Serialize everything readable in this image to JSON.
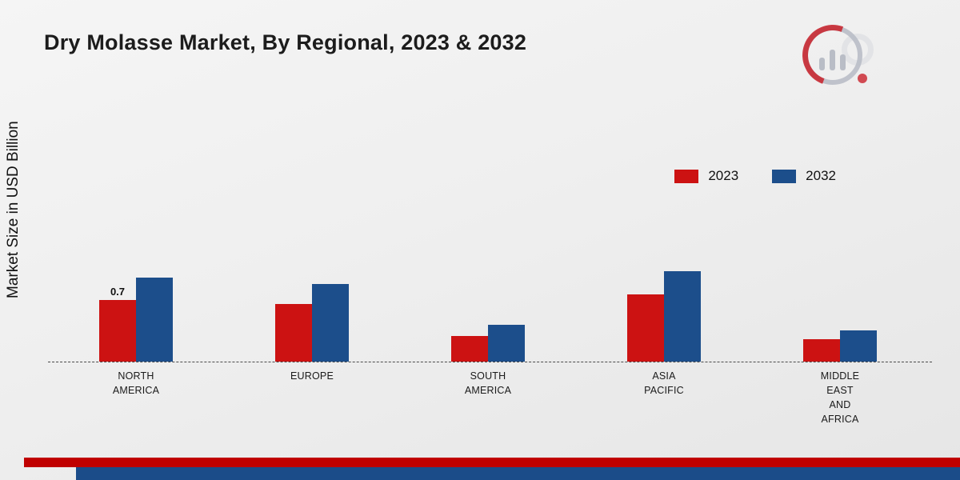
{
  "title": "Dry Molasse Market, By Regional, 2023 & 2032",
  "y_axis_label": "Market Size in USD Billion",
  "chart_data": {
    "type": "bar",
    "title": "Dry Molasse Market, By Regional, 2023 & 2032",
    "ylabel": "Market Size in USD Billion",
    "xlabel": "",
    "categories": [
      "NORTH\nAMERICA",
      "EUROPE",
      "SOUTH\nAMERICA",
      "ASIA\nPACIFIC",
      "MIDDLE\nEAST\nAND\nAFRICA"
    ],
    "series": [
      {
        "name": "2023",
        "color": "#cc1212",
        "values": [
          0.7,
          0.65,
          0.29,
          0.76,
          0.25
        ]
      },
      {
        "name": "2032",
        "color": "#1c4e8b",
        "values": [
          0.95,
          0.88,
          0.42,
          1.03,
          0.35
        ]
      }
    ],
    "data_labels": [
      {
        "series_index": 0,
        "category_index": 0,
        "text": "0.7"
      }
    ],
    "ylim": [
      0,
      1.2
    ],
    "grid": false,
    "legend_position": "top-right",
    "baseline_style": "dashed"
  },
  "footer": {
    "red_stripe_color": "#c00000",
    "blue_stripe_color": "#1b4c89"
  },
  "branding": {
    "logo": "market-research-future-logo"
  }
}
